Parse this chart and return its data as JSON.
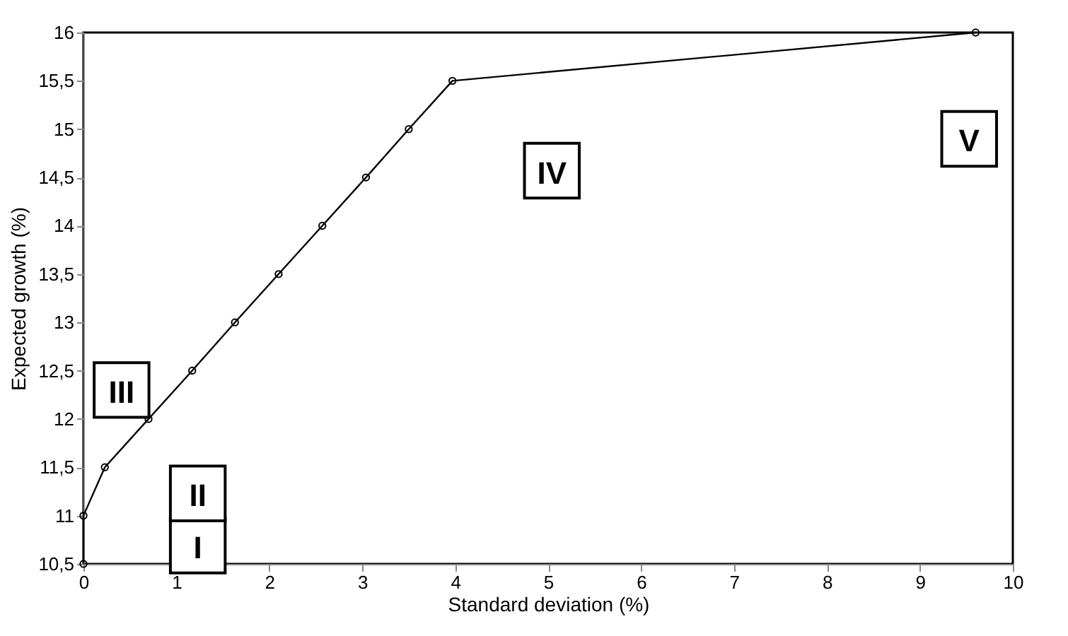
{
  "chart_data": {
    "type": "line",
    "xlabel": "Standard deviation (%)",
    "ylabel": "Expected growth (%)",
    "x": [
      0,
      0,
      0.23,
      0.7,
      1.17,
      1.63,
      2.1,
      2.57,
      3.04,
      3.5,
      3.97,
      9.6
    ],
    "series": [
      {
        "color": "#000000",
        "values": [
          10.5,
          11,
          11.5,
          12,
          12.5,
          13,
          13.5,
          14,
          14.5,
          15,
          15.5,
          16
        ]
      }
    ],
    "xlim": [
      0,
      10
    ],
    "xticks": [
      0,
      1,
      2,
      3,
      4,
      5,
      6,
      7,
      8,
      9,
      10
    ],
    "ylim": [
      10.5,
      16
    ],
    "yticks": [
      {
        "value": 10.5,
        "label": "10,5"
      },
      11,
      {
        "value": 11.5,
        "label": "11,5"
      },
      12,
      {
        "value": 12.5,
        "label": "12,5"
      },
      13,
      {
        "value": 13.5,
        "label": "13,5"
      },
      14,
      {
        "value": 14.5,
        "label": "14,5"
      },
      15,
      {
        "value": 15.5,
        "label": "15,5"
      },
      16
    ],
    "marker": "circle",
    "line_style": "solid",
    "annotations": [
      {
        "text": "I",
        "x": 1.23,
        "y": 10.69
      },
      {
        "text": "II",
        "x": 1.23,
        "y": 11.23
      },
      {
        "text": "III",
        "x": 0.41,
        "y": 12.3
      },
      {
        "text": "IV",
        "x": 5.04,
        "y": 14.57
      },
      {
        "text": "V",
        "x": 9.53,
        "y": 14.9
      }
    ]
  }
}
